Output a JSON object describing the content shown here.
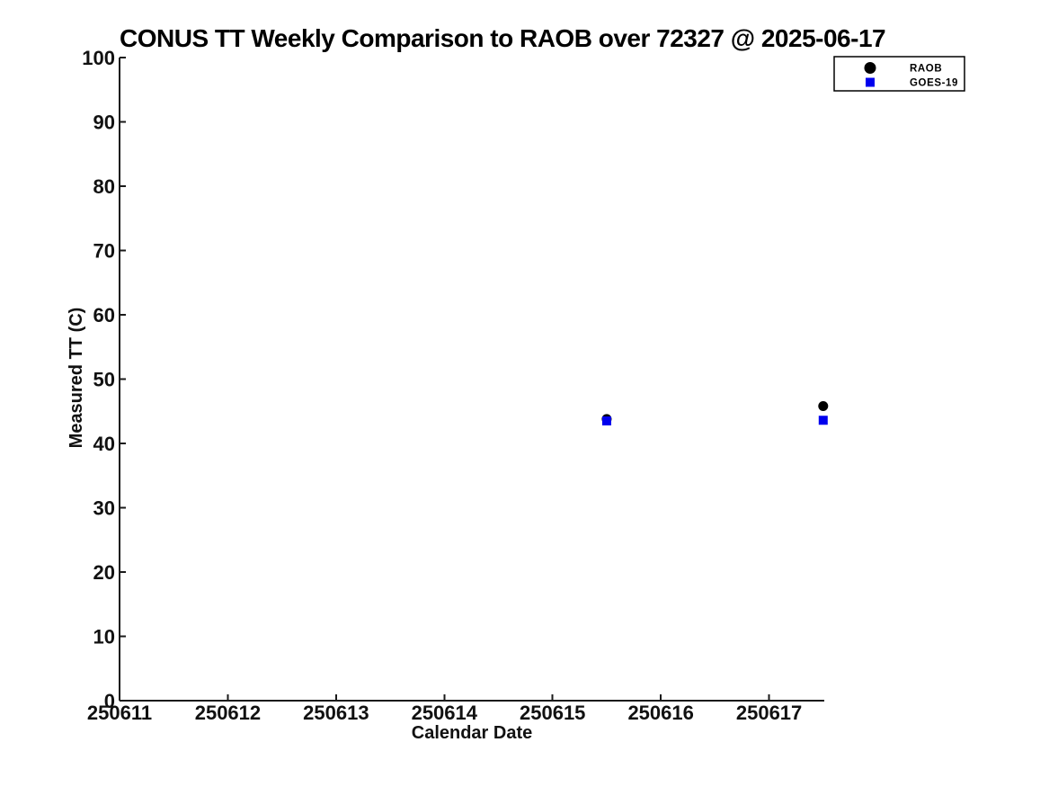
{
  "figure": {
    "background": "#ffffff"
  },
  "chart_data": {
    "type": "scatter",
    "title": "CONUS TT Weekly Comparison to RAOB over 72327 @ 2025-06-17",
    "xlabel": "Calendar Date",
    "ylabel": "Measured TT (C)",
    "xlim": [
      250611,
      250617.51
    ],
    "ylim": [
      0,
      100
    ],
    "x_ticks": [
      250611,
      250612,
      250613,
      250614,
      250615,
      250616,
      250617
    ],
    "y_ticks": [
      0,
      10,
      20,
      30,
      40,
      50,
      60,
      70,
      80,
      90,
      100
    ],
    "grid": false,
    "legend": {
      "position": "top-right",
      "entries": [
        "RAOB",
        "GOES-19"
      ]
    },
    "series": [
      {
        "name": "RAOB",
        "marker": "circle",
        "color": "#000000",
        "points": [
          [
            250615.5,
            43.8
          ],
          [
            250617.5,
            45.8
          ]
        ]
      },
      {
        "name": "GOES-19",
        "marker": "square",
        "color": "#0000ee",
        "points": [
          [
            250615.5,
            43.5
          ],
          [
            250617.5,
            43.6
          ]
        ]
      }
    ],
    "axis_color": "#1a1a1a",
    "text_color": "#111111"
  }
}
